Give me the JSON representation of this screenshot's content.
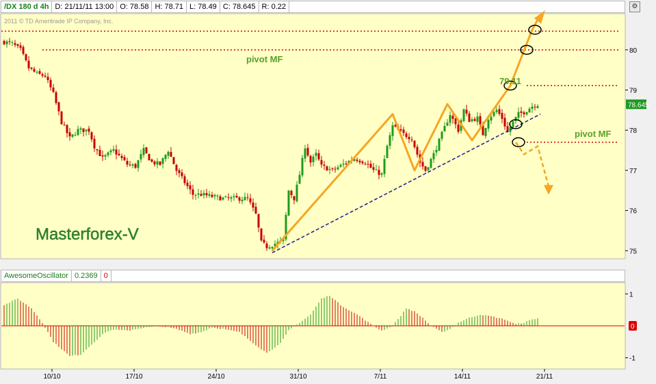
{
  "header": {
    "symbol": "/DX 180 d 4h",
    "date_label": "D: 21/11/11 13:00",
    "open_label": "O: 78.58",
    "high_label": "H: 78.71",
    "low_label": "L: 78.49",
    "close_label": "C: 78.645",
    "range_label": "R: 0.22"
  },
  "copyright": "2011 © TD Ameritrade IP Company, Inc.",
  "watermark": "Masterforex-V",
  "colors": {
    "up": "#1f9a1f",
    "down": "#c80000",
    "plot_bg": "#ffffc6",
    "pattern": "#f5a623",
    "trendline": "#1c1c8a",
    "level": "#cc0000",
    "label_green": "#5aa02c"
  },
  "price_axis": {
    "min": 74.8,
    "max": 80.9,
    "ticks": [
      "80",
      "79",
      "78",
      "77",
      "76",
      "75"
    ],
    "last_price_label": "78.645",
    "last_price": 78.645
  },
  "osc_axis": {
    "min": -1.35,
    "max": 1.35,
    "ticks": [
      "1",
      "0",
      "-1"
    ],
    "zero_marker": "0"
  },
  "indicator": {
    "name": "AwesomeOscillator",
    "value": "0.2369",
    "extra": "0"
  },
  "date_ticks": [
    {
      "label": "10/10",
      "bar": 18
    },
    {
      "label": "17/10",
      "bar": 48
    },
    {
      "label": "24/10",
      "bar": 78
    },
    {
      "label": "31/10",
      "bar": 108
    },
    {
      "label": "7/11",
      "bar": 138
    },
    {
      "label": "14/11",
      "bar": 168
    },
    {
      "label": "21/11",
      "bar": 198
    }
  ],
  "annotations": {
    "pivot_top": {
      "text": "pivot MF",
      "price": 80.0
    },
    "target": {
      "text": "79.11",
      "price": 79.11
    },
    "pivot_bottom": {
      "text": "pivot MF",
      "price": 77.7
    },
    "resistance_top_price": 80.5
  },
  "chart_data": {
    "type": "candlestick",
    "bar_count": 196,
    "price_anchors": [
      [
        0,
        80.2
      ],
      [
        3,
        80.15
      ],
      [
        6,
        80.0
      ],
      [
        9,
        79.55
      ],
      [
        12,
        79.4
      ],
      [
        15,
        79.35
      ],
      [
        18,
        78.9
      ],
      [
        21,
        78.2
      ],
      [
        24,
        77.8
      ],
      [
        27,
        78.0
      ],
      [
        31,
        78.0
      ],
      [
        33,
        77.6
      ],
      [
        36,
        77.3
      ],
      [
        40,
        77.5
      ],
      [
        45,
        77.15
      ],
      [
        48,
        77.1
      ],
      [
        51,
        77.5
      ],
      [
        54,
        77.2
      ],
      [
        57,
        77.15
      ],
      [
        60,
        77.5
      ],
      [
        63,
        77.0
      ],
      [
        66,
        76.7
      ],
      [
        69,
        76.4
      ],
      [
        72,
        76.4
      ],
      [
        76,
        76.35
      ],
      [
        80,
        76.3
      ],
      [
        85,
        76.3
      ],
      [
        89,
        76.3
      ],
      [
        92,
        75.9
      ],
      [
        94,
        75.2
      ],
      [
        96,
        75.1
      ],
      [
        98,
        75.15
      ],
      [
        100,
        75.2
      ],
      [
        102,
        75.25
      ],
      [
        104,
        76.5
      ],
      [
        106,
        76.3
      ],
      [
        108,
        76.9
      ],
      [
        110,
        77.6
      ],
      [
        112,
        77.2
      ],
      [
        114,
        77.4
      ],
      [
        116,
        77.1
      ],
      [
        120,
        77.0
      ],
      [
        124,
        77.15
      ],
      [
        128,
        77.3
      ],
      [
        132,
        77.2
      ],
      [
        135,
        77.0
      ],
      [
        138,
        76.9
      ],
      [
        140,
        77.6
      ],
      [
        142,
        78.1
      ],
      [
        144,
        78.0
      ],
      [
        146,
        77.9
      ],
      [
        149,
        77.8
      ],
      [
        152,
        77.2
      ],
      [
        154,
        77.0
      ],
      [
        157,
        77.4
      ],
      [
        160,
        77.9
      ],
      [
        163,
        78.4
      ],
      [
        166,
        78.0
      ],
      [
        168,
        78.5
      ],
      [
        170,
        78.25
      ],
      [
        173,
        78.3
      ],
      [
        175,
        77.9
      ],
      [
        177,
        78.3
      ],
      [
        180,
        78.5
      ],
      [
        182,
        78.3
      ],
      [
        184,
        77.95
      ],
      [
        186,
        78.2
      ],
      [
        188,
        78.4
      ],
      [
        190,
        78.45
      ],
      [
        193,
        78.6
      ],
      [
        195,
        78.645
      ]
    ],
    "oscillator_anchors": [
      [
        0,
        0.65
      ],
      [
        5,
        0.85
      ],
      [
        10,
        0.55
      ],
      [
        14,
        0.1
      ],
      [
        18,
        -0.5
      ],
      [
        24,
        -0.95
      ],
      [
        28,
        -0.9
      ],
      [
        33,
        -0.5
      ],
      [
        37,
        -0.2
      ],
      [
        40,
        -0.12
      ],
      [
        45,
        -0.15
      ],
      [
        52,
        -0.05
      ],
      [
        58,
        -0.02
      ],
      [
        63,
        -0.1
      ],
      [
        68,
        -0.25
      ],
      [
        72,
        -0.2
      ],
      [
        76,
        -0.05
      ],
      [
        80,
        -0.1
      ],
      [
        86,
        -0.2
      ],
      [
        92,
        -0.6
      ],
      [
        96,
        -0.85
      ],
      [
        101,
        -0.55
      ],
      [
        104,
        -0.15
      ],
      [
        108,
        0.1
      ],
      [
        112,
        0.35
      ],
      [
        116,
        0.85
      ],
      [
        119,
        0.95
      ],
      [
        123,
        0.65
      ],
      [
        127,
        0.45
      ],
      [
        130,
        0.3
      ],
      [
        134,
        0.05
      ],
      [
        138,
        -0.15
      ],
      [
        141,
        -0.05
      ],
      [
        144,
        0.2
      ],
      [
        147,
        0.55
      ],
      [
        150,
        0.45
      ],
      [
        153,
        0.25
      ],
      [
        156,
        0.0
      ],
      [
        160,
        -0.2
      ],
      [
        163,
        -0.1
      ],
      [
        166,
        0.1
      ],
      [
        170,
        0.25
      ],
      [
        174,
        0.35
      ],
      [
        178,
        0.3
      ],
      [
        183,
        0.2
      ],
      [
        187,
        0.05
      ],
      [
        190,
        0.1
      ],
      [
        193,
        0.2
      ],
      [
        195,
        0.2369
      ]
    ],
    "pattern_path": [
      [
        98,
        75.0
      ],
      [
        142,
        78.4
      ],
      [
        150,
        77.0
      ],
      [
        162,
        78.65
      ],
      [
        171,
        77.75
      ],
      [
        185,
        79.11
      ],
      [
        193,
        80.5
      ],
      [
        195,
        80.75
      ]
    ],
    "dashed_path": [
      [
        187,
        77.7
      ],
      [
        190,
        77.4
      ],
      [
        195,
        77.6
      ],
      [
        199,
        76.6
      ]
    ],
    "trendline": [
      [
        98,
        74.95
      ],
      [
        196,
        78.4
      ]
    ],
    "circles": [
      [
        187,
        78.15
      ],
      [
        188,
        77.7
      ],
      [
        185,
        79.11
      ],
      [
        191,
        80.0
      ],
      [
        194,
        80.5
      ]
    ]
  }
}
